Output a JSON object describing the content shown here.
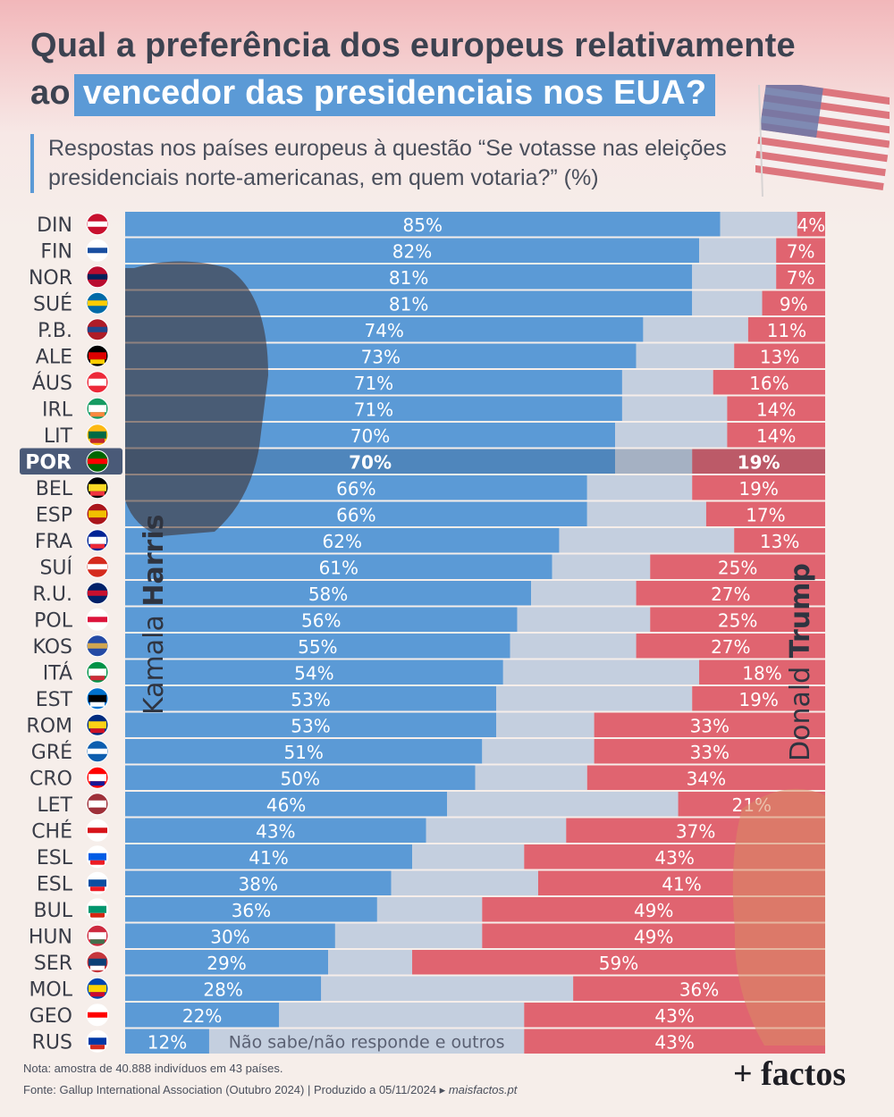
{
  "title": {
    "line1": "Qual a preferência dos europeus relativamente",
    "line2_prefix": "ao",
    "line2_highlight": "vencedor das presidenciais nos EUA?"
  },
  "subtitle": "Respostas nos países europeus à questão “Se votasse nas eleições presidenciais norte-americanas, em quem votaria?” (%)",
  "colors": {
    "harris": "#5b9ad6",
    "other": "#c4cfdf",
    "trump": "#e06470",
    "highlight_row": "#4a5a78"
  },
  "icons": [
    "us-flag-icon",
    "country-flag-icons",
    "kamala-harris-portrait",
    "donald-trump-portrait"
  ],
  "candidate_labels": {
    "harris_first": "Kamala ",
    "harris_last": "Harris",
    "trump_first": "Donald ",
    "trump_last": "Trump"
  },
  "chart_data": {
    "type": "bar",
    "stacked": true,
    "orientation": "horizontal",
    "highlight": "POR",
    "categories": [
      "DIN",
      "FIN",
      "NOR",
      "SUÉ",
      "P.B.",
      "ALE",
      "ÁUS",
      "IRL",
      "LIT",
      "POR",
      "BEL",
      "ESP",
      "FRA",
      "SUÍ",
      "R.U.",
      "POL",
      "KOS",
      "ITÁ",
      "EST",
      "ROM",
      "GRÉ",
      "CRO",
      "LET",
      "CHÉ",
      "ESL",
      "ESL",
      "BUL",
      "HUN",
      "SER",
      "MOL",
      "GEO",
      "RUS"
    ],
    "series": [
      {
        "name": "Kamala Harris",
        "values": [
          85,
          82,
          81,
          81,
          74,
          73,
          71,
          71,
          70,
          70,
          66,
          66,
          62,
          61,
          58,
          56,
          55,
          54,
          53,
          53,
          51,
          50,
          46,
          43,
          41,
          38,
          36,
          30,
          29,
          28,
          22,
          12
        ]
      },
      {
        "name": "Não sabe/não responde e outros",
        "values": [
          11,
          11,
          12,
          10,
          15,
          14,
          13,
          15,
          16,
          11,
          15,
          17,
          25,
          14,
          15,
          19,
          18,
          28,
          28,
          14,
          16,
          16,
          33,
          20,
          16,
          21,
          15,
          21,
          12,
          36,
          35,
          45
        ]
      },
      {
        "name": "Donald Trump",
        "values": [
          4,
          7,
          7,
          9,
          11,
          13,
          16,
          14,
          14,
          19,
          19,
          17,
          13,
          25,
          27,
          25,
          27,
          18,
          19,
          33,
          33,
          34,
          21,
          37,
          43,
          41,
          49,
          49,
          59,
          36,
          43,
          43
        ]
      }
    ],
    "data_labels": {
      "harris": [
        "85%",
        "82%",
        "81%",
        "81%",
        "74%",
        "73%",
        "71%",
        "71%",
        "70%",
        "70%",
        "66%",
        "66%",
        "62%",
        "61%",
        "58%",
        "56%",
        "55%",
        "54%",
        "53%",
        "53%",
        "51%",
        "50%",
        "46%",
        "43%",
        "41%",
        "38%",
        "36%",
        "30%",
        "29%",
        "28%",
        "22%",
        "12%"
      ],
      "trump": [
        "4%",
        "7%",
        "7%",
        "9%",
        "11%",
        "13%",
        "16%",
        "14%",
        "14%",
        "19%",
        "19%",
        "17%",
        "13%",
        "25%",
        "27%",
        "25%",
        "27%",
        "18%",
        "19%",
        "33%",
        "33%",
        "34%",
        "21%",
        "37%",
        "43%",
        "41%",
        "49%",
        "49%",
        "59%",
        "36%",
        "43%",
        "43%"
      ],
      "other_last_row": "Não sabe/não responde e outros"
    },
    "xlim": [
      0,
      100
    ]
  },
  "footer": {
    "note": "Nota: amostra de 40.888 indivíduos em 43 países.",
    "source": "Fonte: Gallup International Association (Outubro 2024) | Produzido a 05/11/2024 ▸",
    "site": "maisfactos.pt",
    "logo": "+ factos"
  }
}
